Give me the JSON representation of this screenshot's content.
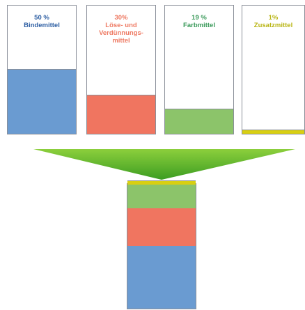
{
  "components": [
    {
      "id": "binder",
      "percent": "50 %",
      "lines": [
        "Bindemittel"
      ],
      "fraction": 0.5,
      "fill": "#6a9bd1",
      "text_color": "#2e5fa3"
    },
    {
      "id": "solvent",
      "percent": "30%",
      "lines": [
        "Löse- und",
        "Verdünnungs-",
        "mittel"
      ],
      "fraction": 0.3,
      "fill": "#f07560",
      "text_color": "#ee7a63"
    },
    {
      "id": "pigment",
      "percent": "19 %",
      "lines": [
        "Farbmittel"
      ],
      "fraction": 0.19,
      "fill": "#8cc46a",
      "text_color": "#3a9a5a"
    },
    {
      "id": "additive",
      "percent": "1%",
      "lines": [
        "Zusatzmittel"
      ],
      "fraction": 0.01,
      "fill": "#d8cf12",
      "text_color": "#b9b514"
    }
  ],
  "funnel_colors": {
    "top": "#8ccf3c",
    "bottom": "#3c9d22"
  },
  "border_color": "#8a8f99"
}
